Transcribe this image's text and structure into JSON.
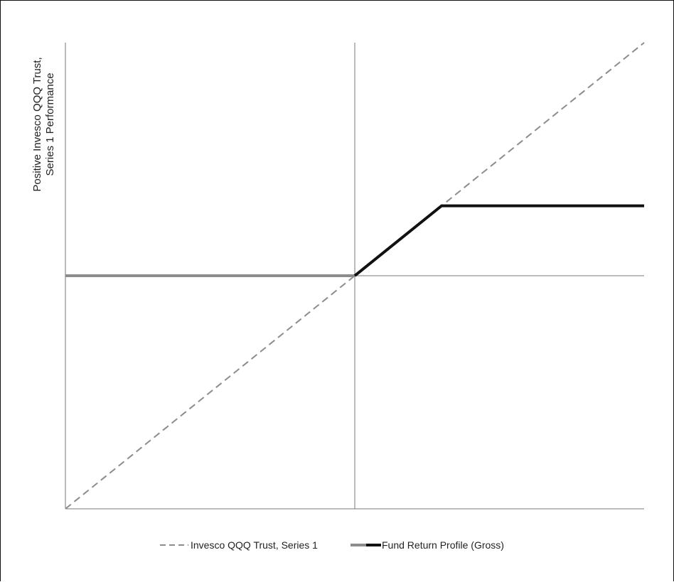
{
  "chart_data": {
    "type": "line",
    "title": "",
    "xlabel": "",
    "ylabel": "Positive Invesco QQQ Trust, Series 1 Performance",
    "ylabel_lines": [
      "Positive Invesco QQQ Trust,",
      "Series 1 Performance"
    ],
    "xlim": [
      -100,
      100
    ],
    "ylim": [
      -100,
      100
    ],
    "grid": false,
    "legend_position": "bottom",
    "series": [
      {
        "name": "Invesco QQQ Trust, Series 1",
        "style": "dashed",
        "color": "#8c8c8c",
        "x": [
          -100,
          100
        ],
        "y": [
          -100,
          100
        ]
      },
      {
        "name": "Fund Return Profile (Gross)",
        "style": "solid",
        "segments": [
          {
            "color": "#8c8c8c",
            "x": [
              -100,
              0
            ],
            "y": [
              0,
              0
            ]
          },
          {
            "color": "#111111",
            "x": [
              0,
              30,
              100
            ],
            "y": [
              0,
              30,
              30
            ]
          }
        ]
      }
    ]
  }
}
